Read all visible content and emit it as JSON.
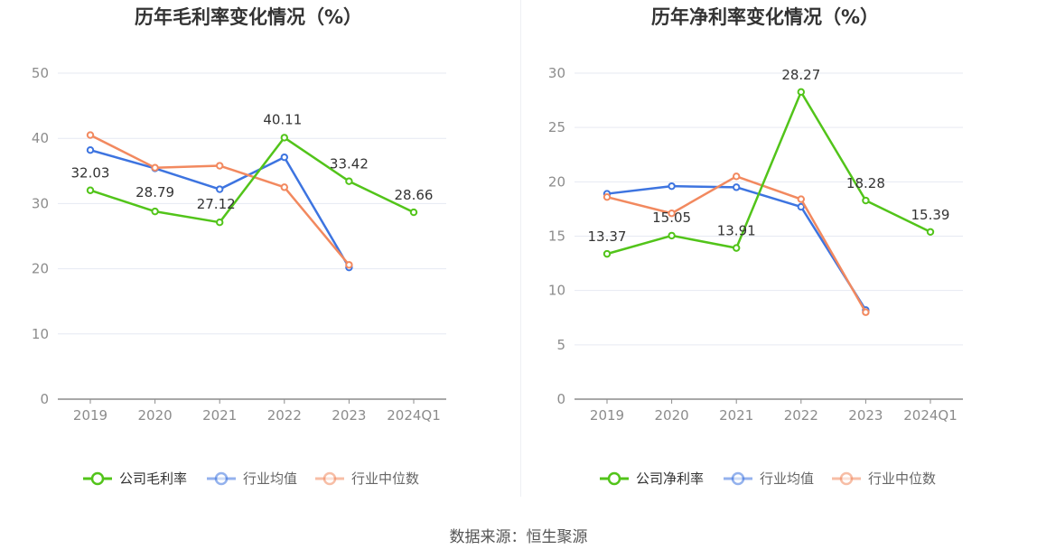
{
  "source_text": "数据来源：恒生聚源",
  "chart_data": [
    {
      "type": "line",
      "title": "历年毛利率变化情况（%）",
      "categories": [
        "2019",
        "2020",
        "2021",
        "2022",
        "2023",
        "2024Q1"
      ],
      "ylim": [
        0,
        50
      ],
      "yticks": [
        0,
        10,
        20,
        30,
        40,
        50
      ],
      "grid": true,
      "legend_position": "bottom-center",
      "series": [
        {
          "name": "公司毛利率",
          "color": "#52c41a",
          "values": [
            32.03,
            28.79,
            27.12,
            40.11,
            33.42,
            28.66
          ],
          "labels": [
            "32.03",
            "28.79",
            "27.12",
            "40.11",
            "33.42",
            "28.66"
          ]
        },
        {
          "name": "行业均值",
          "color": "#3d74e0",
          "values": [
            38.2,
            35.4,
            32.2,
            37.1,
            20.2,
            null
          ]
        },
        {
          "name": "行业中位数",
          "color": "#f2895f",
          "values": [
            40.5,
            35.5,
            35.8,
            32.5,
            20.6,
            null
          ]
        }
      ]
    },
    {
      "type": "line",
      "title": "历年净利率变化情况（%）",
      "categories": [
        "2019",
        "2020",
        "2021",
        "2022",
        "2023",
        "2024Q1"
      ],
      "ylim": [
        0,
        30
      ],
      "yticks": [
        0,
        5,
        10,
        15,
        20,
        25,
        30
      ],
      "grid": true,
      "legend_position": "bottom-center",
      "series": [
        {
          "name": "公司净利率",
          "color": "#52c41a",
          "values": [
            13.37,
            15.05,
            13.91,
            28.27,
            18.28,
            15.39
          ],
          "labels": [
            "13.37",
            "15.05",
            "13.91",
            "28.27",
            "18.28",
            "15.39"
          ]
        },
        {
          "name": "行业均值",
          "color": "#3d74e0",
          "values": [
            18.9,
            19.6,
            19.5,
            17.7,
            8.2,
            null
          ]
        },
        {
          "name": "行业中位数",
          "color": "#f2895f",
          "values": [
            18.6,
            17.1,
            20.5,
            18.4,
            8.0,
            null
          ]
        }
      ]
    }
  ]
}
